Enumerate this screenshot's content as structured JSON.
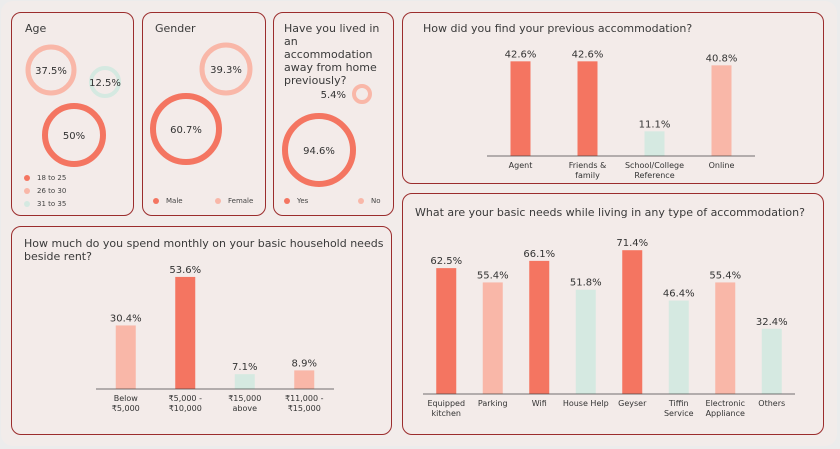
{
  "colors": {
    "coral": "#f47561",
    "pink": "#f9b7a8",
    "mint": "#d5e9e1",
    "border": "#9b2d2d"
  },
  "age": {
    "title": "Age",
    "bubbles": [
      {
        "label": "37.5%",
        "value": 37.5,
        "color": "pink"
      },
      {
        "label": "12.5%",
        "value": 12.5,
        "color": "mint"
      },
      {
        "label": "50%",
        "value": 50,
        "color": "coral"
      }
    ],
    "legend": [
      {
        "label": "18 to 25",
        "color": "coral"
      },
      {
        "label": "26 to 30",
        "color": "pink"
      },
      {
        "label": "31 to 35",
        "color": "mint"
      }
    ]
  },
  "gender": {
    "title": "Gender",
    "bubbles": [
      {
        "label": "39.3%",
        "value": 39.3,
        "color": "pink"
      },
      {
        "label": "60.7%",
        "value": 60.7,
        "color": "coral"
      }
    ],
    "legend": [
      {
        "label": "Male",
        "color": "coral"
      },
      {
        "label": "Female",
        "color": "pink"
      }
    ]
  },
  "lived": {
    "title": "Have you lived in an accommodation away from home previously?",
    "bubbles": [
      {
        "label": "5.4%",
        "value": 5.4,
        "color": "pink"
      },
      {
        "label": "94.6%",
        "value": 94.6,
        "color": "coral"
      }
    ],
    "legend": [
      {
        "label": "Yes",
        "color": "coral"
      },
      {
        "label": "No",
        "color": "pink"
      }
    ]
  },
  "chart_data": [
    {
      "type": "bar",
      "title": "How did you find your previous accommodation?",
      "categories": [
        "Agent",
        "Friends & family",
        "School/College Reference",
        "Online"
      ],
      "values": [
        42.6,
        42.6,
        11.1,
        40.8
      ],
      "value_labels": [
        "42.6%",
        "42.6%",
        "11.1%",
        "40.8%"
      ],
      "colors": [
        "coral",
        "coral",
        "mint",
        "pink"
      ],
      "ylim": [
        0,
        45
      ],
      "grid": false
    },
    {
      "type": "bar",
      "title": "How much do you spend monthly on your basic household needs beside rent?",
      "categories": [
        "Below ₹5,000",
        "₹5,000 - ₹10,000",
        "₹15,000 above",
        "₹11,000 - ₹15,000"
      ],
      "values": [
        30.4,
        53.6,
        7.1,
        8.9
      ],
      "value_labels": [
        "30.4%",
        "53.6%",
        "7.1%",
        "8.9%"
      ],
      "colors": [
        "pink",
        "coral",
        "mint",
        "pink"
      ],
      "ylim": [
        0,
        55
      ],
      "grid": false
    },
    {
      "type": "bar",
      "title": "What are your basic needs while living in any type of accommodation?",
      "categories": [
        "Equipped kitchen",
        "Parking",
        "Wifi",
        "House Help",
        "Geyser",
        "Tiffin Service",
        "Electronic Appliance",
        "Others"
      ],
      "values": [
        62.5,
        55.4,
        66.1,
        51.8,
        71.4,
        46.4,
        55.4,
        32.4
      ],
      "value_labels": [
        "62.5%",
        "55.4%",
        "66.1%",
        "51.8%",
        "71.4%",
        "46.4%",
        "55.4%",
        "32.4%"
      ],
      "colors": [
        "coral",
        "pink",
        "coral",
        "mint",
        "coral",
        "mint",
        "pink",
        "mint"
      ],
      "ylim": [
        0,
        72
      ],
      "grid": false
    }
  ]
}
